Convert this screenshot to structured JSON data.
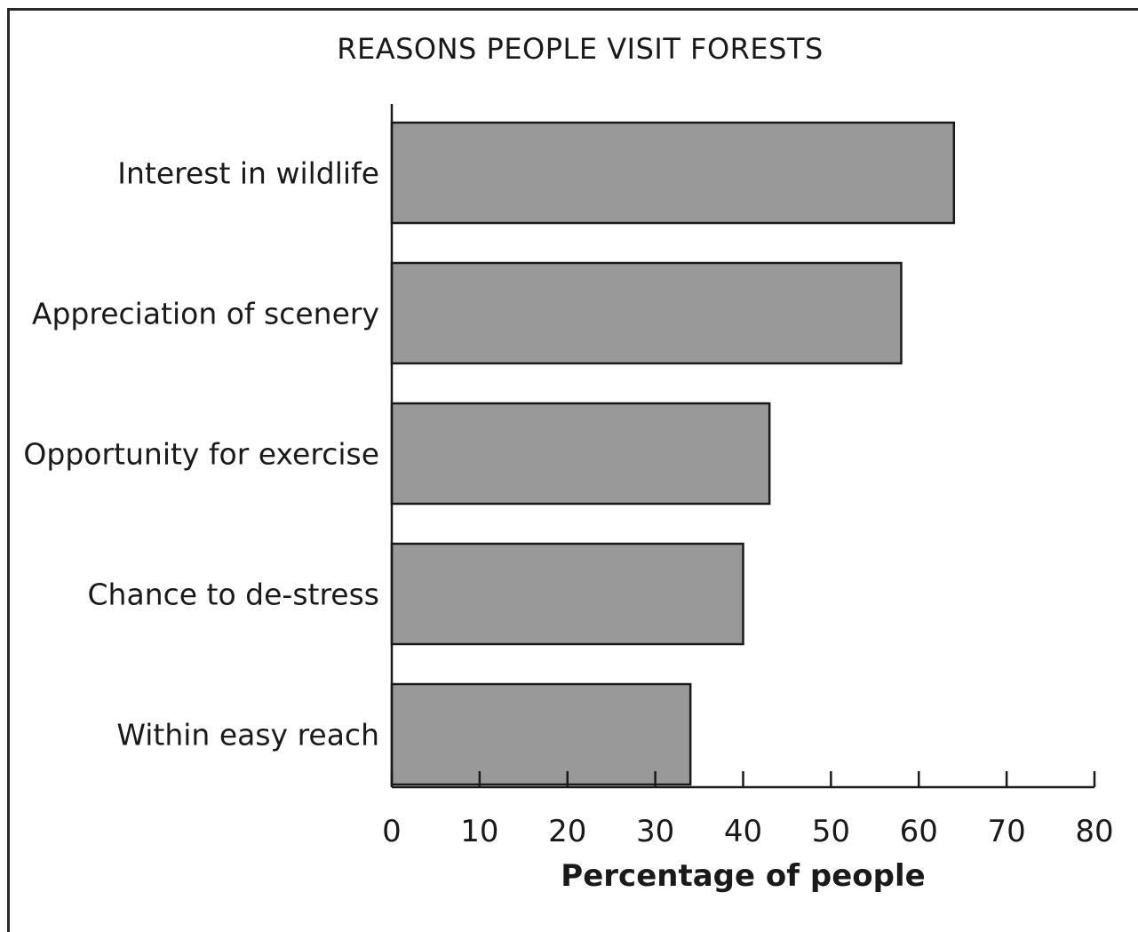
{
  "chart_data": {
    "type": "bar",
    "orientation": "horizontal",
    "title": "REASONS PEOPLE VISIT FORESTS",
    "xlabel": "Percentage of people",
    "ylabel": "",
    "categories": [
      "Interest in wildlife",
      "Appreciation of scenery",
      "Opportunity for exercise",
      "Chance to de-stress",
      "Within easy reach"
    ],
    "values": [
      64,
      58,
      43,
      40,
      34
    ],
    "xlim": [
      0,
      80
    ],
    "xticks": [
      "0",
      "10",
      "20",
      "30",
      "40",
      "50",
      "60",
      "70",
      "80"
    ],
    "grid": false,
    "legend": "none",
    "bar_color": "#999999",
    "bar_edge_color": "#1a1a1a"
  }
}
